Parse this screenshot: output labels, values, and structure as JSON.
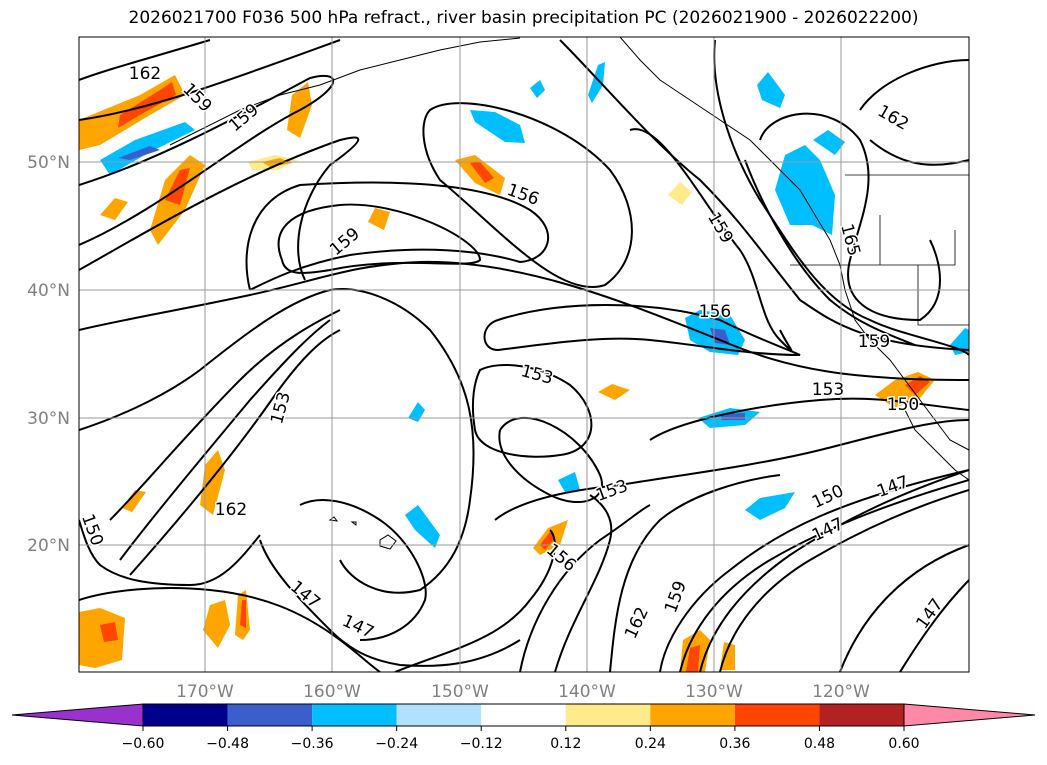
{
  "title": "2026021700 F036 500 hPa refract., river basin precipitation PC (2026021900 - 2026022200)",
  "map": {
    "lat_ticks": [
      "50°N",
      "40°N",
      "30°N",
      "20°N"
    ],
    "lon_ticks": [
      "170°W",
      "160°W",
      "150°W",
      "140°W",
      "130°W",
      "120°W"
    ],
    "contour_levels": [
      147,
      150,
      153,
      156,
      159,
      162,
      165
    ],
    "contour_labels": [
      "162",
      "159",
      "159",
      "156",
      "159",
      "159",
      "162",
      "165",
      "156",
      "153",
      "159",
      "153",
      "150",
      "153",
      "153",
      "150",
      "147",
      "147",
      "162",
      "150",
      "156",
      "159",
      "162",
      "147",
      "147",
      "147"
    ]
  },
  "colorbar": {
    "ticks": [
      "−0.60",
      "−0.48",
      "−0.36",
      "−0.24",
      "−0.12",
      "0.12",
      "0.24",
      "0.36",
      "0.48",
      "0.60"
    ],
    "colors": [
      "#9932cc",
      "#00008b",
      "#3a5fcd",
      "#00bfff",
      "#b0e2ff",
      "#ffffff",
      "#ffeb8a",
      "#ffa500",
      "#ff4500",
      "#b22222",
      "#ff88a8"
    ]
  }
}
